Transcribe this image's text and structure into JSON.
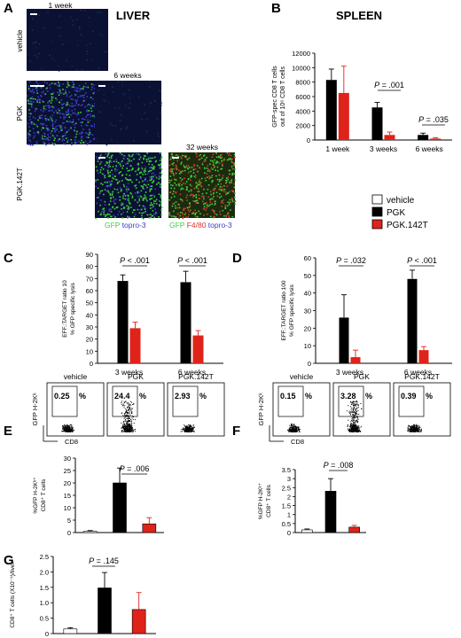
{
  "colors": {
    "vehicle": "#ffffff",
    "pgk": "#000000",
    "pgk142t": "#e0231a",
    "micro_bg": "#0b1133",
    "gfp": "#3cd23a",
    "f480": "#d8342a",
    "topro": "#3a3cc8"
  },
  "panel_letters": [
    "A",
    "B",
    "C",
    "D",
    "E",
    "F",
    "G"
  ],
  "panel_a": {
    "title": "LIVER",
    "row_labels": [
      "vehicle",
      "PGK",
      "PGK.142T"
    ],
    "time_labels": [
      "1 week",
      "6 weeks",
      "32 weeks"
    ],
    "stain_gfp_topro": [
      "GFP",
      "topro-3"
    ],
    "stain_gfp_f480_topro": [
      "GFP",
      "F4/80",
      "topro-3"
    ]
  },
  "legend": {
    "items": [
      "vehicle",
      "PGK",
      "PGK.142T"
    ]
  },
  "flow": {
    "e": {
      "labels": [
        "vehicle",
        "PGK",
        "PGK.142T"
      ],
      "percents": [
        "0.25",
        "24.4",
        "2.93"
      ]
    },
    "f": {
      "labels": [
        "vehicle",
        "PGK",
        "PGK.142T"
      ],
      "percents": [
        "0.15",
        "3.28",
        "0.39"
      ]
    },
    "percent_sign": "%",
    "ylabel": "GFP H-2Kᵏ",
    "xlabel": "CD8"
  },
  "chart_data": [
    {
      "panel": "B",
      "type": "bar",
      "title": "SPLEEN",
      "categories": [
        "1 week",
        "3 weeks",
        "6 weeks"
      ],
      "series": [
        {
          "name": "PGK",
          "values": [
            8300,
            4500,
            700
          ],
          "errors": [
            1500,
            700,
            250
          ]
        },
        {
          "name": "PGK.142T",
          "values": [
            6500,
            700,
            200
          ],
          "errors": [
            3700,
            400,
            100
          ]
        }
      ],
      "ylabel_lines": [
        "GFP-spec CD8 T cells",
        "out of 10⁶ CD8 T cells"
      ],
      "ylim": [
        0,
        12000
      ],
      "yticks": [
        "0",
        "2000",
        "4000",
        "6000",
        "8000",
        "10000",
        "12000"
      ],
      "annotations": [
        "P = .001",
        "P = .035"
      ]
    },
    {
      "panel": "C",
      "type": "bar",
      "categories": [
        "3 weeks",
        "6 weeks"
      ],
      "series": [
        {
          "name": "PGK",
          "values": [
            68,
            67
          ],
          "errors": [
            5,
            9
          ]
        },
        {
          "name": "PGK.142T",
          "values": [
            29,
            23
          ],
          "errors": [
            5,
            4
          ]
        }
      ],
      "ylabel_lines": [
        "EFF.:TARGET ratio 10",
        "% GFP specific lysis"
      ],
      "ylim": [
        0,
        90
      ],
      "yticks": [
        "0",
        "10",
        "20",
        "30",
        "40",
        "50",
        "60",
        "70",
        "80",
        "90"
      ],
      "annotations": [
        "P < .001",
        "P < .001"
      ]
    },
    {
      "panel": "D",
      "type": "bar",
      "categories": [
        "3 weeks",
        "6 weeks"
      ],
      "series": [
        {
          "name": "PGK",
          "values": [
            26,
            48
          ],
          "errors": [
            13,
            5
          ]
        },
        {
          "name": "PGK.142T",
          "values": [
            3.5,
            7.5
          ],
          "errors": [
            4,
            2
          ]
        }
      ],
      "ylabel_lines": [
        "EFF.:TARGET ratio 100",
        "% GFP specific lysis"
      ],
      "ylim": [
        0,
        60
      ],
      "yticks": [
        "0",
        "10",
        "20",
        "30",
        "40",
        "50",
        "60"
      ],
      "annotations": [
        "P = .032",
        "P < .001"
      ]
    },
    {
      "panel": "E",
      "type": "bar",
      "categories": [
        "vehicle",
        "PGK",
        "PGK.142T"
      ],
      "values": [
        0.5,
        20,
        3.5
      ],
      "errors": [
        0.3,
        6,
        2.5
      ],
      "ylabel_lines": [
        "%GFP H-2Kᵏ⁺",
        "CD8⁺ T cells"
      ],
      "ylim": [
        0,
        30
      ],
      "yticks": [
        "0",
        "5",
        "10",
        "15",
        "20",
        "25",
        "30"
      ],
      "annotations": [
        "P = .006"
      ]
    },
    {
      "panel": "F",
      "type": "bar",
      "categories": [
        "vehicle",
        "PGK",
        "PGK.142T"
      ],
      "values": [
        0.15,
        2.3,
        0.3
      ],
      "errors": [
        0.05,
        0.7,
        0.1
      ],
      "ylabel_lines": [
        "%GFP H-2Kᵏ⁺",
        "CD8⁺ T cells"
      ],
      "ylim": [
        0,
        3.5
      ],
      "yticks": [
        "0",
        "0.5",
        "1",
        "1.5",
        "2",
        "2.5",
        "3",
        "3.5"
      ],
      "annotations": [
        "P = .008"
      ]
    },
    {
      "panel": "G",
      "type": "bar",
      "categories": [
        "vehicle",
        "PGK",
        "PGK.142T"
      ],
      "values": [
        0.15,
        1.48,
        0.78
      ],
      "errors": [
        0.04,
        0.5,
        0.55
      ],
      "ylabel_lines": [
        "CD8⁺ T cells (X10⁻⁵)/liver"
      ],
      "ylim": [
        0,
        2.5
      ],
      "yticks": [
        "0",
        "0.5",
        "1.0",
        "1.5",
        "2.0",
        "2.5"
      ],
      "annotations": [
        "P = .145"
      ]
    }
  ]
}
